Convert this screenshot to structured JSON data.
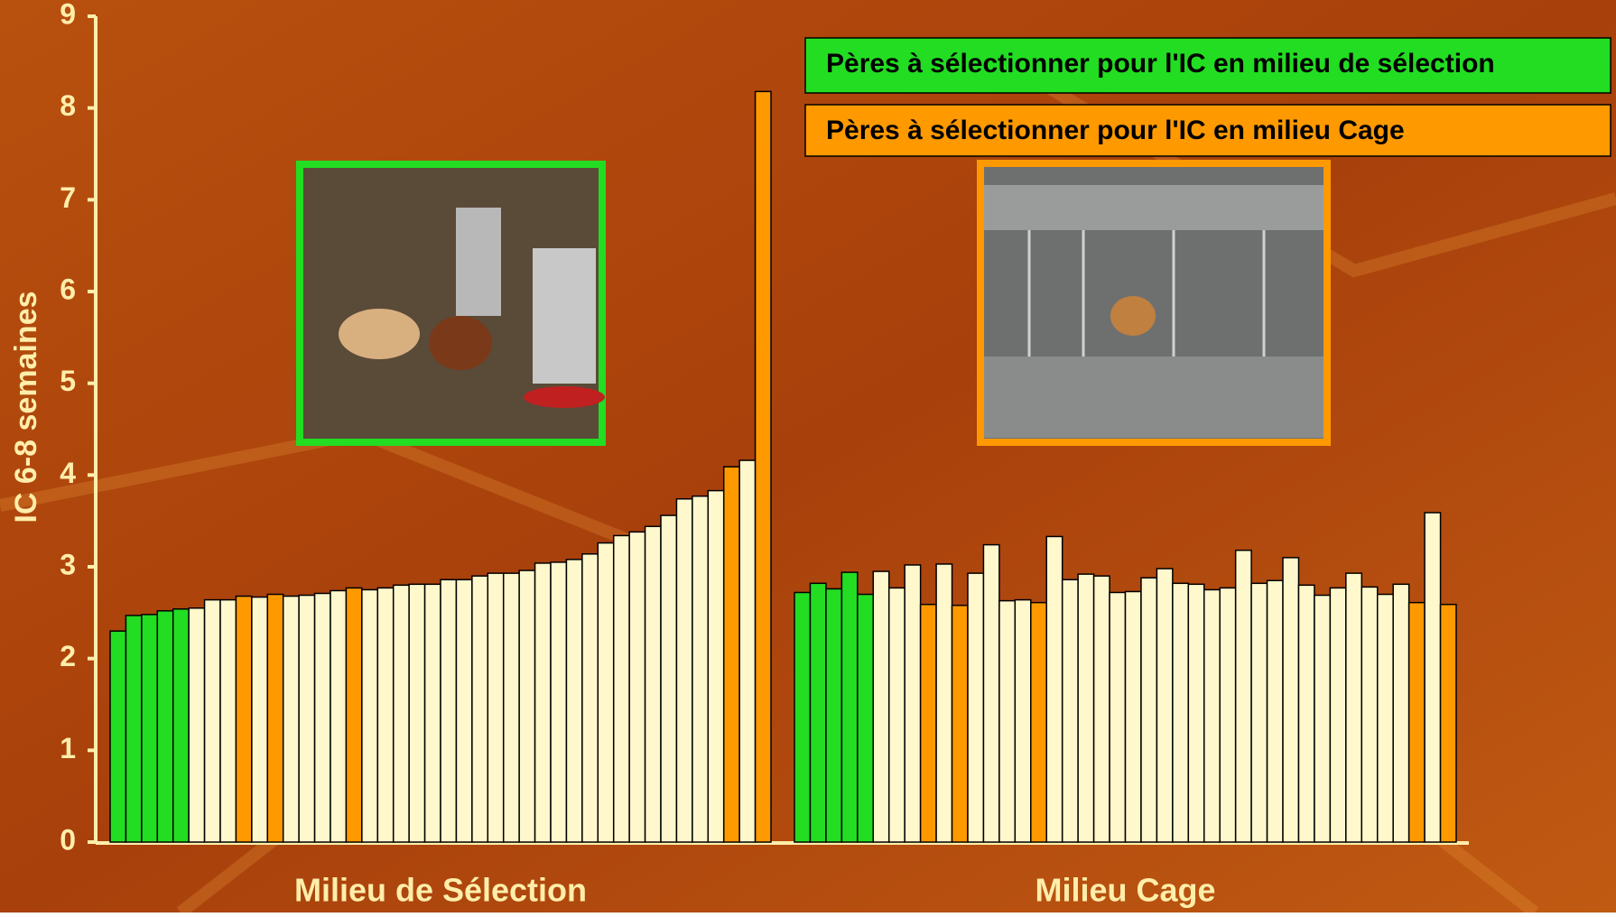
{
  "chart_data": {
    "type": "bar",
    "y_label": "IC 6-8 semaines",
    "ylim": [
      0,
      9
    ],
    "yticks": [
      0,
      1,
      2,
      3,
      4,
      5,
      6,
      7,
      8,
      9
    ],
    "legend": [
      {
        "label": "Pères à sélectionner pour l'IC en milieu de sélection",
        "color": "#22dd22"
      },
      {
        "label": "Pères à sélectionner pour l'IC en milieu Cage",
        "color": "#ff9900"
      }
    ],
    "groups": [
      {
        "name": "Milieu de Sélection",
        "values": [
          2.3,
          2.47,
          2.48,
          2.52,
          2.54,
          2.55,
          2.64,
          2.64,
          2.68,
          2.67,
          2.7,
          2.68,
          2.69,
          2.71,
          2.74,
          2.77,
          2.75,
          2.77,
          2.8,
          2.81,
          2.81,
          2.86,
          2.86,
          2.9,
          2.93,
          2.93,
          2.96,
          3.04,
          3.05,
          3.08,
          3.14,
          3.26,
          3.34,
          3.38,
          3.44,
          3.56,
          3.74,
          3.77,
          3.83,
          4.09,
          4.16,
          8.18
        ],
        "colors": [
          "#22dd22",
          "#22dd22",
          "#22dd22",
          "#22dd22",
          "#22dd22",
          "#fff8cc",
          "#fff8cc",
          "#fff8cc",
          "#ff9900",
          "#fff8cc",
          "#ff9900",
          "#fff8cc",
          "#fff8cc",
          "#fff8cc",
          "#fff8cc",
          "#ff9900",
          "#fff8cc",
          "#fff8cc",
          "#fff8cc",
          "#fff8cc",
          "#fff8cc",
          "#fff8cc",
          "#fff8cc",
          "#fff8cc",
          "#fff8cc",
          "#fff8cc",
          "#fff8cc",
          "#fff8cc",
          "#fff8cc",
          "#fff8cc",
          "#fff8cc",
          "#fff8cc",
          "#fff8cc",
          "#fff8cc",
          "#fff8cc",
          "#fff8cc",
          "#fff8cc",
          "#fff8cc",
          "#fff8cc",
          "#ff9900",
          "#fff8cc",
          "#ff9900"
        ]
      },
      {
        "name": "Milieu Cage",
        "values": [
          2.72,
          2.82,
          2.76,
          2.94,
          2.7,
          2.95,
          2.77,
          3.02,
          2.59,
          3.03,
          2.58,
          2.93,
          3.24,
          2.63,
          2.64,
          2.61,
          3.33,
          2.86,
          2.92,
          2.9,
          2.72,
          2.73,
          2.88,
          2.98,
          2.82,
          2.81,
          2.75,
          2.77,
          3.18,
          2.82,
          2.85,
          3.1,
          2.8,
          2.69,
          2.77,
          2.93,
          2.78,
          2.7,
          2.81,
          2.61,
          3.59,
          2.59
        ],
        "colors": [
          "#22dd22",
          "#22dd22",
          "#22dd22",
          "#22dd22",
          "#22dd22",
          "#fff8cc",
          "#fff8cc",
          "#fff8cc",
          "#ff9900",
          "#fff8cc",
          "#ff9900",
          "#fff8cc",
          "#fff8cc",
          "#fff8cc",
          "#fff8cc",
          "#ff9900",
          "#fff8cc",
          "#fff8cc",
          "#fff8cc",
          "#fff8cc",
          "#fff8cc",
          "#fff8cc",
          "#fff8cc",
          "#fff8cc",
          "#fff8cc",
          "#fff8cc",
          "#fff8cc",
          "#fff8cc",
          "#fff8cc",
          "#fff8cc",
          "#fff8cc",
          "#fff8cc",
          "#fff8cc",
          "#fff8cc",
          "#fff8cc",
          "#fff8cc",
          "#fff8cc",
          "#fff8cc",
          "#fff8cc",
          "#ff9900",
          "#fff8cc",
          "#ff9900"
        ]
      }
    ]
  }
}
